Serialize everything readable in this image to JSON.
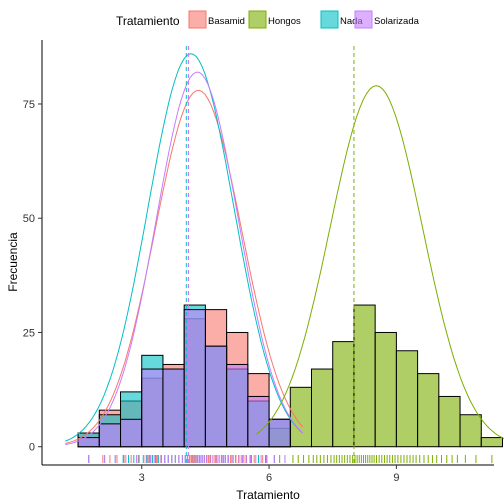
{
  "chart_data": {
    "type": "histogram",
    "xlabel": "Tratamiento",
    "ylabel": "Frecuencia",
    "xlim": [
      0.65,
      11.3
    ],
    "ylim": [
      -4,
      89
    ],
    "x_ticks": [
      3,
      6,
      9
    ],
    "y_ticks": [
      0,
      25,
      50,
      75
    ],
    "bin_width": 0.5,
    "legend": {
      "title": "Tratamiento",
      "position": "top",
      "entries": [
        "Basamid",
        "Hongos",
        "Nada",
        "Solarizada"
      ]
    },
    "colors": {
      "Basamid": "#F8766D",
      "Hongos": "#7CAE00",
      "Nada": "#00BFC4",
      "Solarizada": "#C77CFF"
    },
    "series": [
      {
        "name": "Basamid",
        "bin_starts": [
          1.5,
          2.0,
          2.5,
          3.0,
          3.5,
          4.0,
          4.5,
          5.0,
          5.5,
          6.0
        ],
        "counts": [
          3,
          8,
          10,
          15,
          18,
          28,
          30,
          25,
          16,
          6
        ],
        "mean": 4.1
      },
      {
        "name": "Hongos",
        "bin_starts": [
          6.0,
          6.5,
          7.0,
          7.5,
          8.0,
          8.5,
          9.0,
          9.5,
          10.0,
          10.5,
          11.0
        ],
        "counts": [
          4,
          13,
          17,
          23,
          31,
          25,
          21,
          16,
          11,
          7,
          2
        ],
        "mean": 8.0
      },
      {
        "name": "Nada",
        "bin_starts": [
          1.5,
          2.0,
          2.5,
          3.0,
          3.5,
          4.0,
          4.5,
          5.0,
          5.5,
          6.0
        ],
        "counts": [
          3,
          7,
          12,
          20,
          17,
          31,
          22,
          17,
          10,
          6
        ],
        "mean": 4.05
      },
      {
        "name": "Solarizada",
        "bin_starts": [
          1.5,
          2.0,
          2.5,
          3.0,
          3.5,
          4.0,
          4.5,
          5.0,
          5.5,
          6.0
        ],
        "counts": [
          2,
          5,
          6,
          17,
          17,
          30,
          22,
          18,
          11,
          6
        ],
        "mean": 4.1
      }
    ],
    "density_peaks": {
      "Basamid": 78,
      "Hongos": 79,
      "Nada": 86,
      "Solarizada": 82
    }
  }
}
